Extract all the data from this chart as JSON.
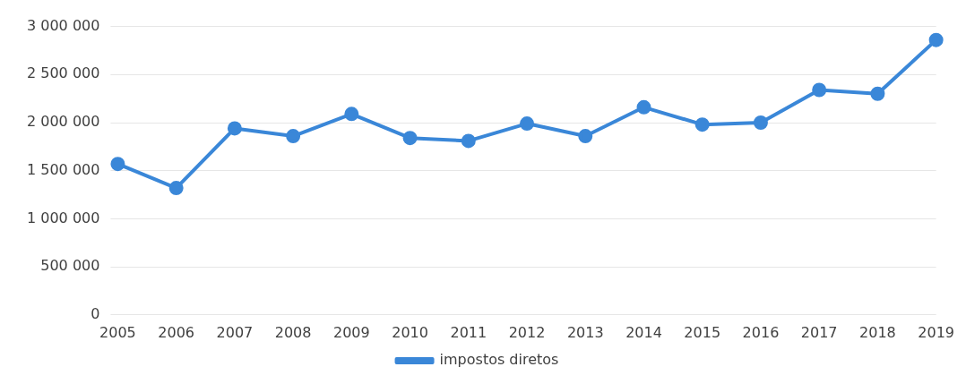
{
  "chart_data": {
    "type": "line",
    "categories": [
      "2005",
      "2006",
      "2007",
      "2008",
      "2009",
      "2010",
      "2011",
      "2012",
      "2013",
      "2014",
      "2015",
      "2016",
      "2017",
      "2018",
      "2019"
    ],
    "series": [
      {
        "name": "impostos diretos",
        "color": "#3a87d8",
        "values": [
          1570000,
          1320000,
          1940000,
          1860000,
          2090000,
          1840000,
          1810000,
          1990000,
          1860000,
          2160000,
          1980000,
          2000000,
          2340000,
          2300000,
          2860000
        ]
      }
    ],
    "ylim": [
      0,
      3000000
    ],
    "yticks": [
      {
        "value": 0,
        "label": "0"
      },
      {
        "value": 500000,
        "label": "500 000"
      },
      {
        "value": 1000000,
        "label": "1 000 000"
      },
      {
        "value": 1500000,
        "label": "1 500 000"
      },
      {
        "value": 2000000,
        "label": "2 000 000"
      },
      {
        "value": 2500000,
        "label": "2 500 000"
      },
      {
        "value": 3000000,
        "label": "3 000 000"
      }
    ],
    "grid": "y",
    "legend": "bottom",
    "marker": "circle",
    "line_style": "solid"
  }
}
